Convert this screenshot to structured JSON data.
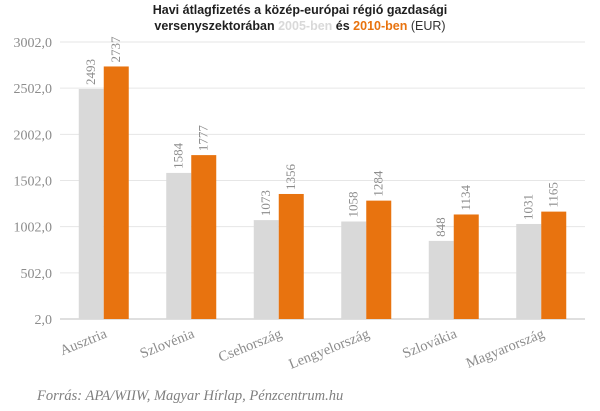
{
  "chart_data": {
    "type": "bar",
    "title": {
      "line1": "Havi átlagfizetés a közép-európai régió gazdasági",
      "line2_prefix": "versenyszektorában",
      "series_2005": "2005-ben",
      "conjunction": "és",
      "series_2010": "2010-ben",
      "unit": "(EUR)"
    },
    "categories": [
      "Ausztria",
      "Szlovénia",
      "Csehország",
      "Lengyelország",
      "Szlovákia",
      "Magyarország"
    ],
    "series": [
      {
        "name": "2005-ben",
        "color": "#d9d9d9",
        "values": [
          2493,
          1584,
          1073,
          1058,
          848,
          1031
        ]
      },
      {
        "name": "2010-ben",
        "color": "#e8730f",
        "values": [
          2737,
          1777,
          1356,
          1284,
          1134,
          1165
        ]
      }
    ],
    "y_ticks": [
      "3002,0",
      "2502,0",
      "2002,0",
      "1502,0",
      "1002,0",
      "502,0",
      "2,0"
    ],
    "ylim": [
      2,
      3002
    ],
    "grid": true,
    "xlabel": "",
    "ylabel": "",
    "source": "Forrás: APA/WIIW, Magyar Hírlap, Pénzcentrum.hu"
  }
}
